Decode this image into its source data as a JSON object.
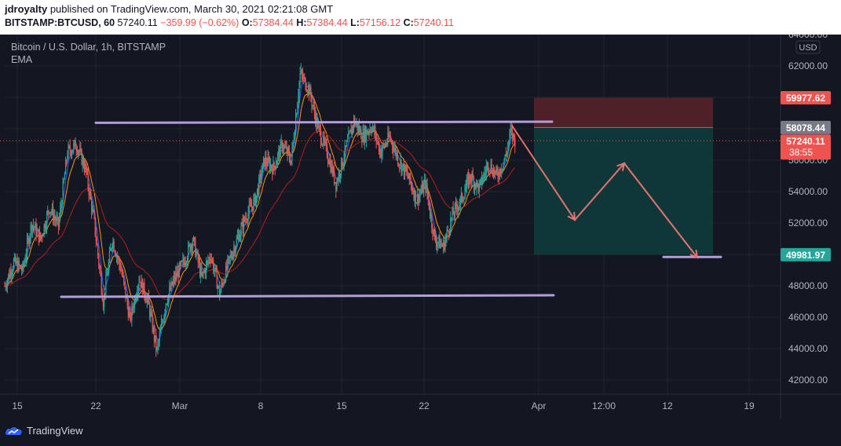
{
  "header": {
    "author": "jdroyalty",
    "published_text": "published on TradingView.com, March 30, 2021 02:21:08 GMT",
    "symbol": "BITSTAMP:BTCUSD, 60",
    "last": "57240.11",
    "change": "−359.99 (−0.62%)",
    "o_label": "O:",
    "o_val": "57384.44",
    "h_label": "H:",
    "h_val": "57384.44",
    "l_label": "L:",
    "l_val": "57156.12",
    "c_label": "C:",
    "c_val": "57240.11"
  },
  "legend": {
    "title": "Bitcoin / U.S. Dollar, 1h, BITSTAMP",
    "indicator": "EMA"
  },
  "footer": {
    "brand": "TradingView"
  },
  "colors": {
    "background": "#131722",
    "up": "#26a69a",
    "down": "#ef5350",
    "ema_fast": "#2962ff",
    "ema_mid": "#ff9800",
    "ema_slow": "#b71c1c",
    "trendline": "#b39ddb",
    "arrow": "#e57373",
    "stop_zone": "#5b2229",
    "target_zone": "#113b3b"
  },
  "chart_data": {
    "type": "candlestick",
    "currency": "USD",
    "ylim": [
      41500,
      64500
    ],
    "y_ticks": [
      64000,
      62000,
      60000,
      58000,
      56000,
      54000,
      52000,
      50000,
      48000,
      46000,
      44000,
      42000
    ],
    "y_tick_labels": [
      "64000.00",
      "62000.00",
      "60000.00",
      "58000.00",
      "56000.00",
      "54000.00",
      "52000.00",
      "50000.00",
      "48000.00",
      "46000.00",
      "44000.00",
      "42000.00"
    ],
    "x_tick_labels": [
      "15",
      "22",
      "Mar",
      "8",
      "15",
      "22",
      "Apr",
      "12:00",
      "12",
      "19"
    ],
    "grid": true,
    "price_labels": [
      {
        "value": "59977.62",
        "role": "stop"
      },
      {
        "value": "58078.44",
        "role": "entry"
      },
      {
        "value": "57240.11",
        "role": "last",
        "countdown": "38:55"
      },
      {
        "value": "49981.97",
        "role": "target"
      }
    ],
    "price_path": [
      [
        0,
        48000
      ],
      [
        10,
        49500
      ],
      [
        20,
        49000
      ],
      [
        30,
        52000
      ],
      [
        40,
        51000
      ],
      [
        50,
        53000
      ],
      [
        60,
        51800
      ],
      [
        70,
        56500
      ],
      [
        80,
        57000
      ],
      [
        90,
        55500
      ],
      [
        100,
        52000
      ],
      [
        110,
        47000
      ],
      [
        120,
        51000
      ],
      [
        130,
        49000
      ],
      [
        140,
        45800
      ],
      [
        150,
        48500
      ],
      [
        160,
        47000
      ],
      [
        170,
        43800
      ],
      [
        180,
        47000
      ],
      [
        190,
        48500
      ],
      [
        200,
        49500
      ],
      [
        210,
        51000
      ],
      [
        220,
        48500
      ],
      [
        230,
        50000
      ],
      [
        240,
        47500
      ],
      [
        250,
        49500
      ],
      [
        260,
        51000
      ],
      [
        270,
        52500
      ],
      [
        280,
        53500
      ],
      [
        290,
        56000
      ],
      [
        300,
        55500
      ],
      [
        310,
        57000
      ],
      [
        320,
        56000
      ],
      [
        330,
        61500
      ],
      [
        340,
        60500
      ],
      [
        350,
        58000
      ],
      [
        360,
        56500
      ],
      [
        370,
        54500
      ],
      [
        380,
        56500
      ],
      [
        390,
        58500
      ],
      [
        400,
        57500
      ],
      [
        410,
        58200
      ],
      [
        420,
        56500
      ],
      [
        430,
        57500
      ],
      [
        440,
        56000
      ],
      [
        450,
        55000
      ],
      [
        460,
        53500
      ],
      [
        470,
        54500
      ],
      [
        480,
        51000
      ],
      [
        490,
        50500
      ],
      [
        500,
        52500
      ],
      [
        510,
        53500
      ],
      [
        520,
        55000
      ],
      [
        530,
        54200
      ],
      [
        540,
        55800
      ],
      [
        550,
        55000
      ],
      [
        560,
        56300
      ],
      [
        565,
        57800
      ],
      [
        570,
        57240
      ]
    ],
    "trendlines": [
      {
        "from": [
          96,
          58380
        ],
        "to": [
          590,
          58450
        ],
        "label": "resistance"
      },
      {
        "from": [
          60,
          47300
        ],
        "to": [
          590,
          47400
        ],
        "label": "support"
      },
      {
        "from": [
          754,
          49840
        ],
        "to": [
          832,
          49840
        ],
        "label": "target level"
      }
    ],
    "projection": [
      [
        571,
        58200
      ],
      [
        647,
        52200
      ],
      [
        708,
        55800
      ],
      [
        796,
        49800
      ]
    ],
    "position": {
      "entry": 58078.44,
      "stop": 59977.62,
      "target": 49981.97
    }
  }
}
